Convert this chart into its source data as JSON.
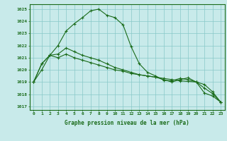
{
  "title": "Graphe pression niveau de la mer (hPa)",
  "background_color": "#c8eaea",
  "grid_color": "#88c8c8",
  "line_color": "#1a6b1a",
  "xlim": [
    -0.5,
    23.5
  ],
  "ylim": [
    1016.7,
    1025.4
  ],
  "yticks": [
    1017,
    1018,
    1019,
    1020,
    1021,
    1022,
    1023,
    1024,
    1025
  ],
  "xticks": [
    0,
    1,
    2,
    3,
    4,
    5,
    6,
    7,
    8,
    9,
    10,
    11,
    12,
    13,
    14,
    15,
    16,
    17,
    18,
    19,
    20,
    21,
    22,
    23
  ],
  "series": [
    [
      1019.0,
      1020.0,
      1021.2,
      1022.0,
      1023.2,
      1023.8,
      1024.3,
      1024.85,
      1025.0,
      1024.5,
      1024.3,
      1023.7,
      1021.9,
      1020.5,
      1019.8,
      1019.5,
      1019.15,
      1019.1,
      1019.3,
      1019.2,
      1019.0,
      1018.1,
      1017.85,
      1017.35
    ],
    [
      1019.0,
      1020.5,
      1021.2,
      1021.0,
      1021.3,
      1021.0,
      1020.8,
      1020.6,
      1020.4,
      1020.2,
      1020.0,
      1019.9,
      1019.7,
      1019.6,
      1019.5,
      1019.4,
      1019.3,
      1019.2,
      1019.1,
      1019.05,
      1019.0,
      1018.8,
      1018.2,
      1017.35
    ],
    [
      1019.0,
      1020.5,
      1021.2,
      1021.3,
      1021.8,
      1021.5,
      1021.2,
      1021.0,
      1020.8,
      1020.5,
      1020.2,
      1020.0,
      1019.8,
      1019.6,
      1019.5,
      1019.4,
      1019.2,
      1019.0,
      1019.2,
      1019.35,
      1019.0,
      1018.5,
      1018.05,
      1017.35
    ]
  ]
}
